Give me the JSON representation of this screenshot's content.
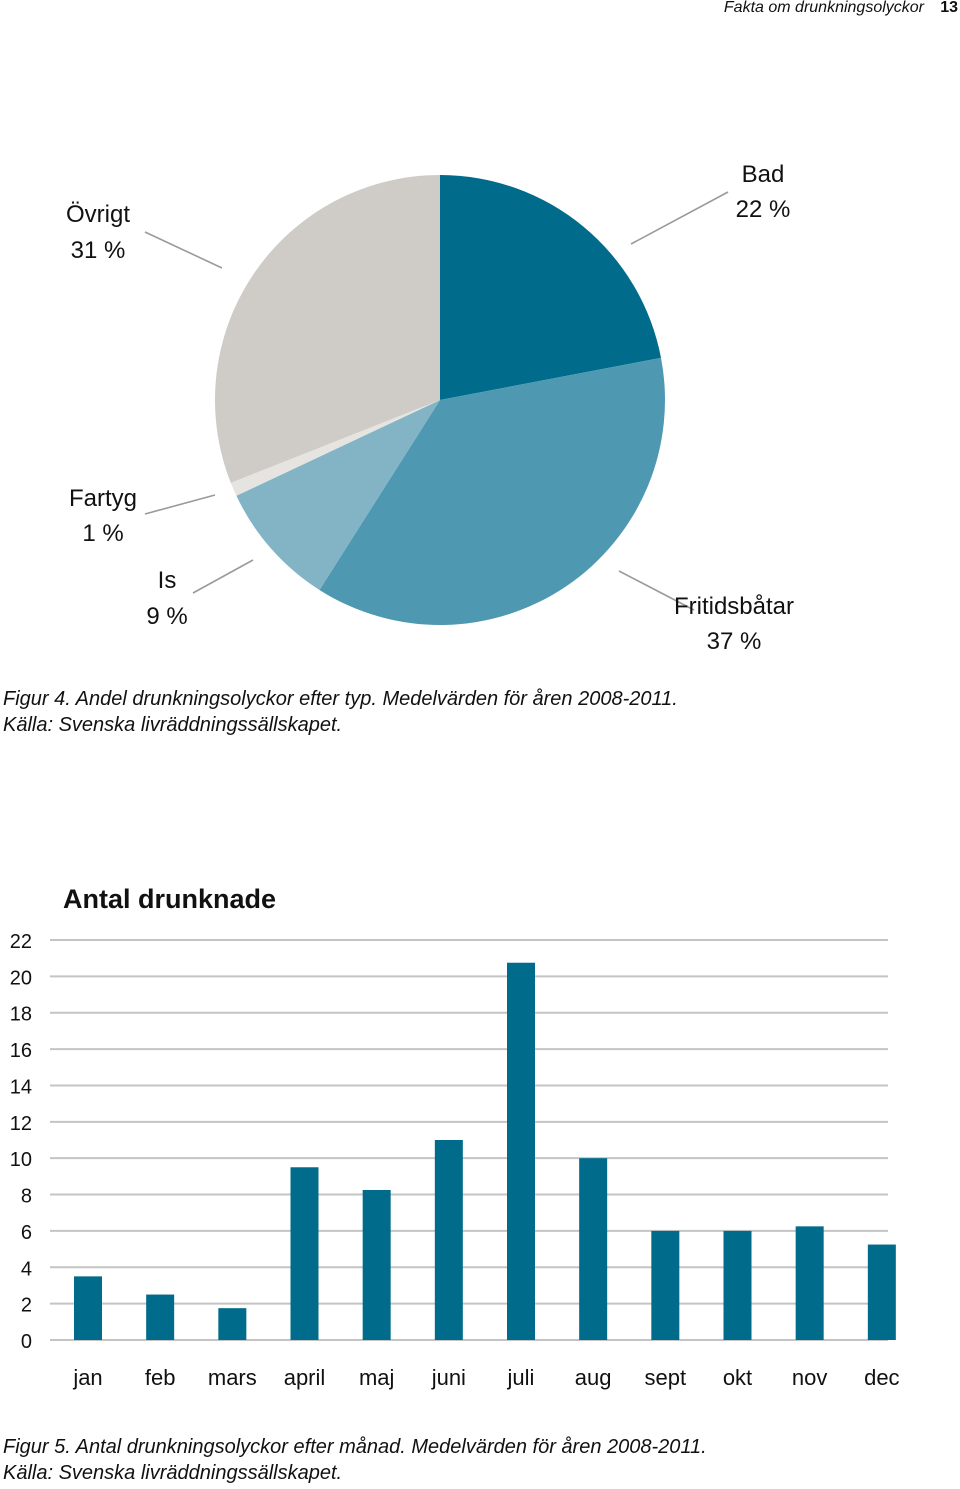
{
  "header": {
    "title": "Fakta om drunkningsolyckor",
    "page": "13"
  },
  "chart_data": [
    {
      "type": "pie",
      "title": "",
      "slices": [
        {
          "label": "Bad",
          "value": 22,
          "display": "22 %",
          "color": "#006b8a"
        },
        {
          "label": "Fritidsbåtar",
          "value": 37,
          "display": "37 %",
          "color": "#4e99b1"
        },
        {
          "label": "Is",
          "value": 9,
          "display": "9 %",
          "color": "#82b4c6"
        },
        {
          "label": "Fartyg",
          "value": 1,
          "display": "1 %",
          "color": "#e6e4e0"
        },
        {
          "label": "Övrigt",
          "value": 31,
          "display": "31 %",
          "color": "#cfccc7"
        }
      ],
      "caption_line1": "Figur 4. Andel drunkningsolyckor efter typ. Medelvärden för åren 2008-2011.",
      "caption_line2": "Källa: Svenska livräddningssällskapet."
    },
    {
      "type": "bar",
      "title": "Antal drunknade",
      "categories": [
        "jan",
        "feb",
        "mars",
        "april",
        "maj",
        "juni",
        "juli",
        "aug",
        "sept",
        "okt",
        "nov",
        "dec"
      ],
      "values": [
        3.5,
        2.5,
        1.75,
        9.5,
        8.25,
        11,
        20.75,
        10,
        6,
        6,
        6.25,
        5.25
      ],
      "ylim": [
        0,
        22
      ],
      "yticks": [
        0,
        2,
        4,
        6,
        8,
        10,
        12,
        14,
        16,
        18,
        20,
        22
      ],
      "grid": true,
      "bar_color": "#006b8a",
      "caption_line1": "Figur 5. Antal drunkningsolyckor efter månad.  Medelvärden för åren 2008-2011.",
      "caption_line2": "Källa: Svenska livräddningssällskapet."
    }
  ]
}
